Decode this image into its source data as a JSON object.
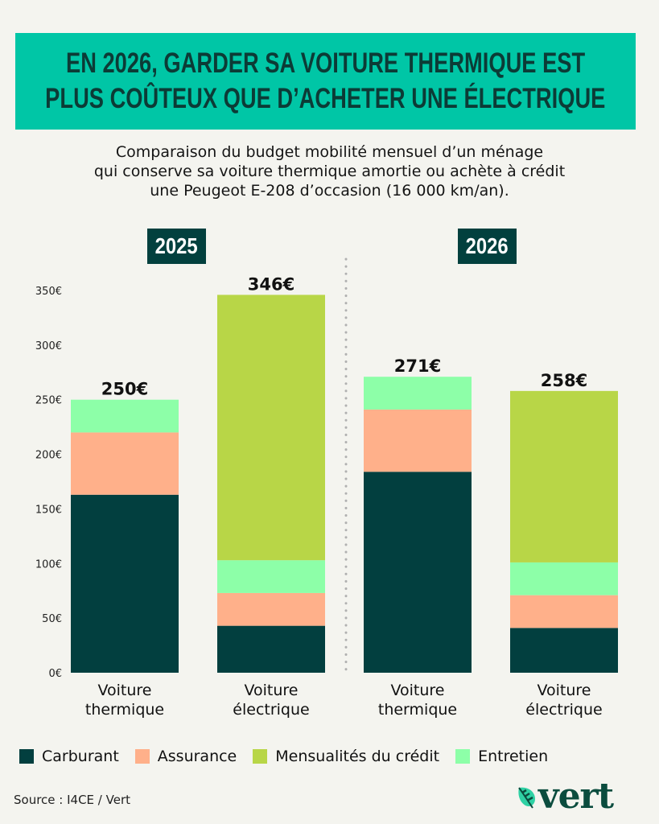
{
  "header": {
    "title_lines": [
      "EN 2026, GARDER SA VOITURE THERMIQUE EST",
      "PLUS COÛTEUX QUE D’ACHETER UNE ÉLECTRIQUE"
    ],
    "subtitle_lines": [
      "Comparaison du budget mobilité mensuel d’un ménage",
      "qui conserve sa voiture thermique amortie ou achète à crédit",
      "une Peugeot E-208 d’occasion (16 000 km/an)."
    ]
  },
  "years": [
    "2025",
    "2026"
  ],
  "footer": {
    "source": "Source : I4CE / Vert",
    "logo_text": "vert",
    "logo_icon": "leaf-icon"
  },
  "colors": {
    "title_bg": "#00c6a6",
    "title_text": "#0c3b36",
    "badge_bg": "#02403e",
    "Carburant": "#023f3f",
    "Assurance": "#ffb08a",
    "Mensualités du crédit": "#b8d647",
    "Entretien": "#8dffa8"
  },
  "chart_data": {
    "type": "bar",
    "stacked": true,
    "title": "EN 2026, GARDER SA VOITURE THERMIQUE EST PLUS COÛTEUX QUE D’ACHETER UNE ÉLECTRIQUE",
    "xlabel": "",
    "ylabel": "",
    "groups": [
      "2025",
      "2025",
      "2026",
      "2026"
    ],
    "categories": [
      "Voiture thermique",
      "Voiture électrique",
      "Voiture thermique",
      "Voiture électrique"
    ],
    "category_lines": [
      [
        "Voiture",
        "thermique"
      ],
      [
        "Voiture",
        "électrique"
      ],
      [
        "Voiture",
        "thermique"
      ],
      [
        "Voiture",
        "électrique"
      ]
    ],
    "series": [
      {
        "name": "Carburant",
        "values": [
          163,
          43,
          184,
          41
        ]
      },
      {
        "name": "Assurance",
        "values": [
          57,
          30,
          57,
          30
        ]
      },
      {
        "name": "Mensualités du crédit",
        "values": [
          0,
          243,
          0,
          157
        ]
      },
      {
        "name": "Entretien",
        "values": [
          30,
          30,
          30,
          30
        ]
      }
    ],
    "stack_order": [
      "Carburant",
      "Assurance",
      "Entretien",
      "Mensualités du crédit"
    ],
    "totals": [
      250,
      346,
      271,
      258
    ],
    "total_labels": [
      "250€",
      "346€",
      "271€",
      "258€"
    ],
    "yticks": [
      0,
      50,
      100,
      150,
      200,
      250,
      300,
      350
    ],
    "ytick_labels": [
      "0€",
      "50€",
      "100€",
      "150€",
      "200€",
      "250€",
      "300€",
      "350€"
    ],
    "ylim": [
      0,
      350
    ],
    "grid": false,
    "legend": [
      "Carburant",
      "Assurance",
      "Mensualités du crédit",
      "Entretien"
    ],
    "legend_position": "bottom",
    "divider": "dotted line between 2025 and 2026 groups"
  }
}
